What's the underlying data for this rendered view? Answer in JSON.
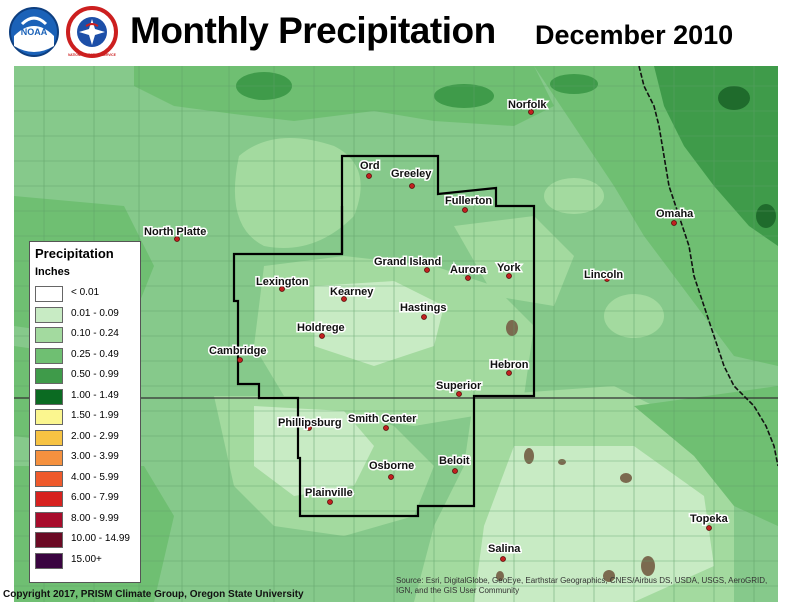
{
  "header": {
    "title": "Monthly Precipitation",
    "subtitle": "December 2010",
    "logos": [
      {
        "name": "noaa-logo",
        "text": "NOAA",
        "color": "#1b62b8"
      },
      {
        "name": "nws-logo",
        "text": "NATIONAL WEATHER SERVICE",
        "color": "#cc1f1f"
      }
    ]
  },
  "map": {
    "background_color": "#86c98b",
    "palette": {
      "p001_009": "#c8ebc4",
      "p010_024": "#a3da9f",
      "p025_049": "#6fbf72",
      "p050_099": "#3f9b4a",
      "p100_149": "#1f6b2c",
      "dark_spots": "#7b6a4f"
    },
    "cities": [
      {
        "name": "Norfolk"
      },
      {
        "name": "Ord"
      },
      {
        "name": "Greeley"
      },
      {
        "name": "Fullerton"
      },
      {
        "name": "North Platte"
      },
      {
        "name": "Omaha"
      },
      {
        "name": "Grand Island"
      },
      {
        "name": "Aurora"
      },
      {
        "name": "York"
      },
      {
        "name": "Lexington"
      },
      {
        "name": "Kearney"
      },
      {
        "name": "Lincoln"
      },
      {
        "name": "Hastings"
      },
      {
        "name": "Holdrege"
      },
      {
        "name": "Cambridge"
      },
      {
        "name": "Hebron"
      },
      {
        "name": "Superior"
      },
      {
        "name": "Phillipsburg"
      },
      {
        "name": "Smith Center"
      },
      {
        "name": "Beloit"
      },
      {
        "name": "Osborne"
      },
      {
        "name": "Plainville"
      },
      {
        "name": "Topeka"
      },
      {
        "name": "Salina"
      }
    ]
  },
  "legend": {
    "title": "Precipitation",
    "units": "Inches",
    "entries": [
      {
        "label": "< 0.01",
        "color": "#ffffff"
      },
      {
        "label": "0.01 - 0.09",
        "color": "#c8ebc4"
      },
      {
        "label": "0.10 - 0.24",
        "color": "#a3da9f"
      },
      {
        "label": "0.25 - 0.49",
        "color": "#6fbf72"
      },
      {
        "label": "0.50 - 0.99",
        "color": "#3f9b4a"
      },
      {
        "label": "1.00 - 1.49",
        "color": "#0b6b22"
      },
      {
        "label": "1.50 - 1.99",
        "color": "#fbf68f"
      },
      {
        "label": "2.00 - 2.99",
        "color": "#f7c343"
      },
      {
        "label": "3.00 - 3.99",
        "color": "#f5913f"
      },
      {
        "label": "4.00 - 5.99",
        "color": "#ef5a2c"
      },
      {
        "label": "6.00 - 7.99",
        "color": "#d7221f"
      },
      {
        "label": "8.00 - 9.99",
        "color": "#a80c2b"
      },
      {
        "label": "10.00 - 14.99",
        "color": "#6b0a24"
      },
      {
        "label": "15.00+",
        "color": "#3a0440"
      }
    ]
  },
  "footer": {
    "copyright": "Copyright 2017, PRISM Climate Group, Oregon State University",
    "source": "Source: Esri, DigitalGlobe, GeoEye, Earthstar Geographics, CNES/Airbus DS, USDA, USGS, AeroGRID, IGN, and the GIS User Community"
  }
}
